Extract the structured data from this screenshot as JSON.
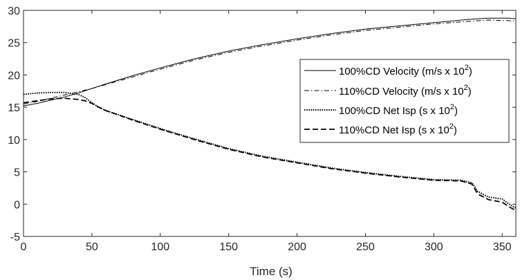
{
  "chart_data": {
    "type": "line",
    "xlabel": "Time (s)",
    "ylabel": "",
    "xlim": [
      0,
      360
    ],
    "ylim": [
      -5,
      30
    ],
    "xticks": [
      0,
      50,
      100,
      150,
      200,
      250,
      300,
      350
    ],
    "yticks": [
      -5,
      0,
      5,
      10,
      15,
      20,
      25,
      30
    ],
    "grid": false,
    "legend_position": "right",
    "series": [
      {
        "name": "100%CD Velocity (m/s x 10",
        "name_exponent": "2",
        "name_suffix": ")",
        "style": "solid",
        "x": [
          0,
          10,
          20,
          30,
          40,
          50,
          60,
          80,
          100,
          125,
          150,
          175,
          200,
          225,
          250,
          275,
          300,
          325,
          340,
          355,
          360
        ],
        "y": [
          15.2,
          15.6,
          16.1,
          16.6,
          17.2,
          17.9,
          18.6,
          19.9,
          21.1,
          22.5,
          23.7,
          24.7,
          25.6,
          26.4,
          27.1,
          27.6,
          28.1,
          28.6,
          28.8,
          28.8,
          28.7
        ]
      },
      {
        "name": "110%CD Velocity (m/s x 10",
        "name_exponent": "2",
        "name_suffix": ")",
        "style": "dashdot",
        "x": [
          0,
          10,
          20,
          30,
          40,
          50,
          60,
          80,
          100,
          125,
          150,
          175,
          200,
          225,
          250,
          275,
          300,
          325,
          340,
          355,
          360
        ],
        "y": [
          15.5,
          15.9,
          16.4,
          16.9,
          17.4,
          17.9,
          18.5,
          19.7,
          20.9,
          22.3,
          23.5,
          24.5,
          25.4,
          26.2,
          26.9,
          27.4,
          27.9,
          28.3,
          28.5,
          28.4,
          28.3
        ]
      },
      {
        "name": "100%CD Net Isp (s x 10",
        "name_exponent": "2",
        "name_suffix": ")",
        "style": "dotted",
        "x": [
          0,
          10,
          20,
          30,
          40,
          45,
          50,
          55,
          60,
          80,
          100,
          125,
          150,
          175,
          200,
          225,
          250,
          275,
          300,
          320,
          328,
          332,
          340,
          350,
          355,
          360
        ],
        "y": [
          17.0,
          17.2,
          17.3,
          17.3,
          17.0,
          16.5,
          15.7,
          15.0,
          14.5,
          13.1,
          11.7,
          10.1,
          8.6,
          7.4,
          6.5,
          5.6,
          4.9,
          4.3,
          3.8,
          3.7,
          3.3,
          2.0,
          1.1,
          0.8,
          0.0,
          -0.6
        ]
      },
      {
        "name": "110%CD Net Isp (s x 10",
        "name_exponent": "2",
        "name_suffix": ")",
        "style": "dashed",
        "x": [
          0,
          10,
          20,
          30,
          40,
          45,
          50,
          55,
          60,
          80,
          100,
          125,
          150,
          175,
          200,
          225,
          250,
          275,
          300,
          320,
          328,
          332,
          340,
          350,
          355,
          360
        ],
        "y": [
          15.7,
          16.0,
          16.3,
          16.4,
          16.2,
          16.0,
          15.6,
          15.0,
          14.5,
          13.0,
          11.6,
          10.0,
          8.5,
          7.3,
          6.4,
          5.5,
          4.8,
          4.2,
          3.7,
          3.6,
          3.1,
          1.6,
          0.7,
          0.3,
          -0.4,
          -1.0
        ]
      }
    ]
  }
}
